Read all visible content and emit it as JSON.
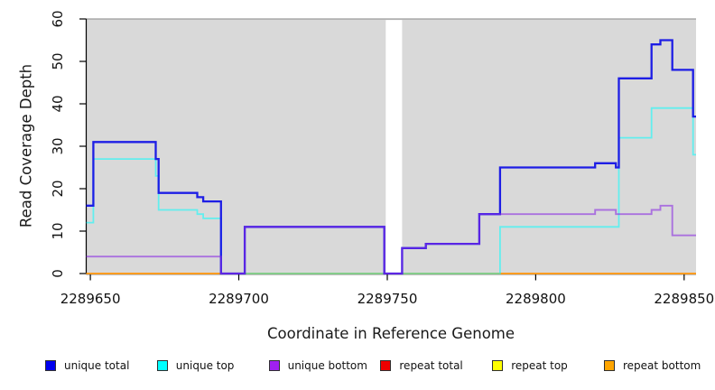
{
  "chart_data": {
    "type": "line",
    "step": true,
    "title": "",
    "xlabel": "Coordinate in Reference Genome",
    "ylabel": "Read Coverage Depth",
    "xlim": [
      2289648.6,
      2289854
    ],
    "ylim": [
      0,
      60
    ],
    "x_ticks": [
      2289650,
      2289700,
      2289750,
      2289800,
      2289850
    ],
    "y_ticks": [
      0,
      10,
      20,
      30,
      40,
      50,
      60
    ],
    "grid": false,
    "background": "#D9D9D9",
    "masked_region": {
      "from": 2289749.5,
      "to": 2289755,
      "color": "#FFFFFF"
    },
    "legend_position": "bottom",
    "series": [
      {
        "name": "repeat total",
        "line_color": "#E60000",
        "line_width": 2,
        "line_opacity": 1,
        "points": [
          [
            2289649,
            0
          ]
        ]
      },
      {
        "name": "repeat top",
        "line_color": "#FFFF00",
        "line_width": 2,
        "line_opacity": 1,
        "points": [
          [
            2289649,
            0
          ]
        ]
      },
      {
        "name": "repeat bottom",
        "line_color": "#FF9C20",
        "line_width": 2.1,
        "line_opacity": 1,
        "points": [
          [
            2289649,
            0
          ]
        ]
      },
      {
        "name": "unique top",
        "line_color": "#00FFFF",
        "line_width": 1.8,
        "line_opacity": 0.55,
        "points": [
          [
            2289649,
            12
          ],
          [
            2289651,
            27
          ],
          [
            2289672,
            23
          ],
          [
            2289673,
            15
          ],
          [
            2289686,
            14
          ],
          [
            2289688,
            13
          ],
          [
            2289694,
            0
          ],
          [
            2289788,
            11
          ],
          [
            2289828,
            32
          ],
          [
            2289839,
            39
          ],
          [
            2289853,
            28
          ]
        ]
      },
      {
        "name": "unique total",
        "line_color": "#1414E6",
        "line_width": 2.3,
        "line_opacity": 0.95,
        "points": [
          [
            2289649,
            16
          ],
          [
            2289651,
            31
          ],
          [
            2289672,
            27
          ],
          [
            2289673,
            19
          ],
          [
            2289686,
            18
          ],
          [
            2289688,
            17
          ],
          [
            2289694,
            0
          ],
          [
            2289702,
            11
          ],
          [
            2289749,
            0
          ],
          [
            2289755,
            6
          ],
          [
            2289763,
            7
          ],
          [
            2289781,
            14
          ],
          [
            2289788,
            25
          ],
          [
            2289820,
            26
          ],
          [
            2289827,
            25
          ],
          [
            2289828,
            46
          ],
          [
            2289839,
            54
          ],
          [
            2289842,
            55
          ],
          [
            2289846,
            48
          ],
          [
            2289853,
            37
          ]
        ]
      },
      {
        "name": "unique bottom",
        "line_color": "#8A2BE2",
        "line_width": 1.9,
        "line_opacity": 0.6,
        "points": [
          [
            2289649,
            4
          ],
          [
            2289694,
            0
          ],
          [
            2289702,
            11
          ],
          [
            2289749,
            0
          ],
          [
            2289755,
            6
          ],
          [
            2289763,
            7
          ],
          [
            2289781,
            14
          ],
          [
            2289820,
            15
          ],
          [
            2289827,
            14
          ],
          [
            2289839,
            15
          ],
          [
            2289842,
            16
          ],
          [
            2289846,
            9
          ]
        ]
      }
    ]
  },
  "legend": {
    "items": [
      {
        "label": "unique total",
        "color": "#0000EE"
      },
      {
        "label": "unique top",
        "color": "#00FFFF"
      },
      {
        "label": "unique bottom",
        "color": "#A020F0"
      },
      {
        "label": "repeat total",
        "color": "#EE0000"
      },
      {
        "label": "repeat top",
        "color": "#FFFF00"
      },
      {
        "label": "repeat bottom",
        "color": "#FFA500"
      }
    ]
  },
  "titles": {
    "x": "Coordinate in Reference Genome",
    "y": "Read Coverage Depth"
  }
}
